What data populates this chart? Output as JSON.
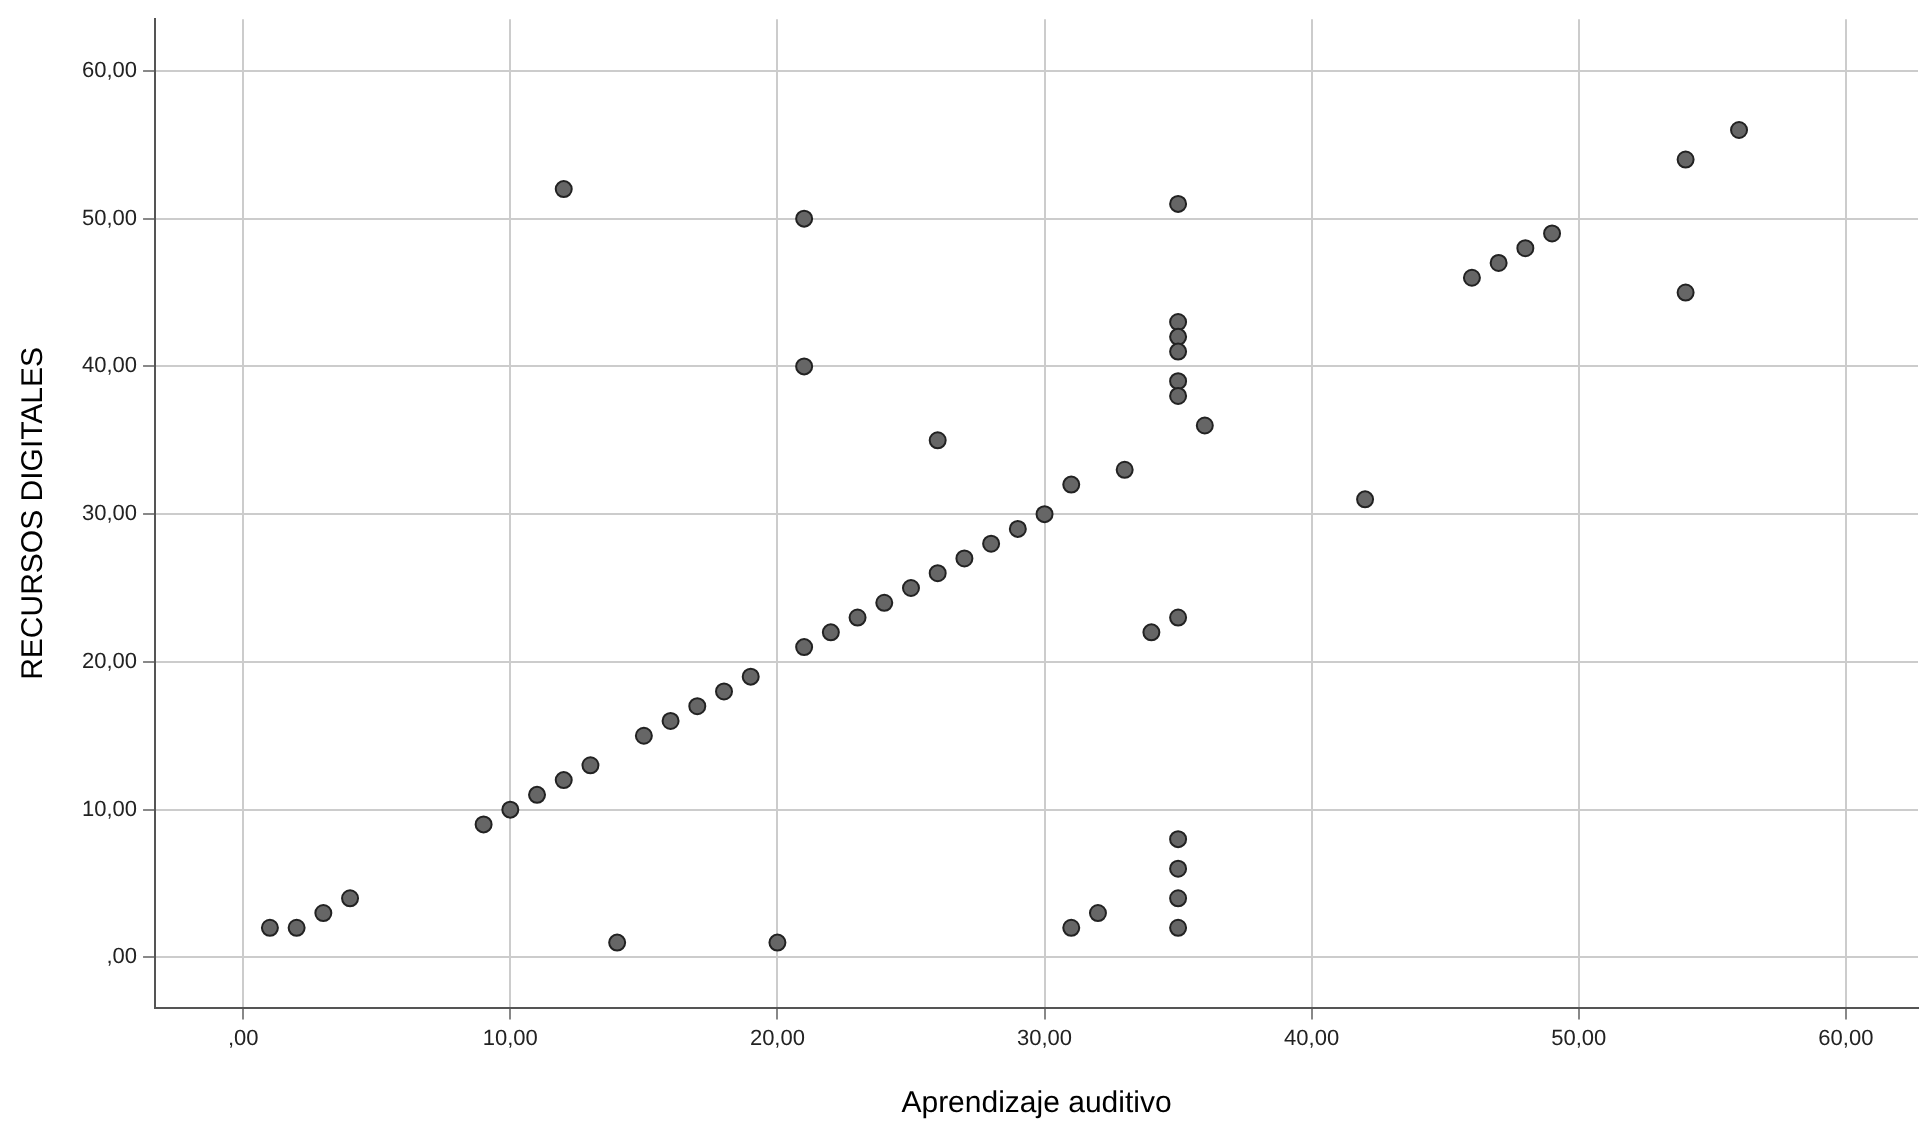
{
  "chart_data": {
    "type": "scatter",
    "xlabel": "Aprendizaje auditivo",
    "ylabel": "RECURSOS DIGITALES",
    "x": [
      1,
      2,
      3,
      4,
      9,
      10,
      11,
      12,
      13,
      14,
      15,
      16,
      17,
      18,
      19,
      20,
      21,
      22,
      23,
      24,
      25,
      26,
      27,
      28,
      29,
      30,
      31,
      33,
      31,
      32,
      35,
      35,
      35,
      35,
      35,
      35,
      35,
      35,
      35,
      35,
      35,
      34,
      36,
      12,
      21,
      21,
      26,
      42,
      46,
      47,
      48,
      49,
      54,
      54,
      56
    ],
    "series": [
      {
        "color": "#666666",
        "values": [
          2,
          2,
          3,
          4,
          9,
          10,
          11,
          12,
          13,
          1,
          15,
          16,
          17,
          18,
          19,
          1,
          21,
          22,
          23,
          24,
          25,
          26,
          27,
          28,
          29,
          30,
          32,
          33,
          2,
          3,
          51,
          43,
          42,
          41,
          39,
          38,
          23,
          8,
          6,
          4,
          2,
          22,
          36,
          52,
          50,
          40,
          35,
          31,
          46,
          47,
          48,
          49,
          54,
          45,
          56
        ]
      }
    ],
    "xlim": [
      -3.3,
      62.7
    ],
    "ylim": [
      -3.4,
      63.5
    ],
    "xticks": [
      {
        "value": 0,
        "label": ",00"
      },
      {
        "value": 10,
        "label": "10,00"
      },
      {
        "value": 20,
        "label": "20,00"
      },
      {
        "value": 30,
        "label": "30,00"
      },
      {
        "value": 40,
        "label": "40,00"
      },
      {
        "value": 50,
        "label": "50,00"
      },
      {
        "value": 60,
        "label": "60,00"
      }
    ],
    "yticks": [
      {
        "value": 0,
        "label": ",00"
      },
      {
        "value": 10,
        "label": "10,00"
      },
      {
        "value": 20,
        "label": "20,00"
      },
      {
        "value": 30,
        "label": "30,00"
      },
      {
        "value": 40,
        "label": "40,00"
      },
      {
        "value": 50,
        "label": "50,00"
      },
      {
        "value": 60,
        "label": "60,00"
      }
    ],
    "grid": true,
    "marker": "circle",
    "legend": false
  }
}
